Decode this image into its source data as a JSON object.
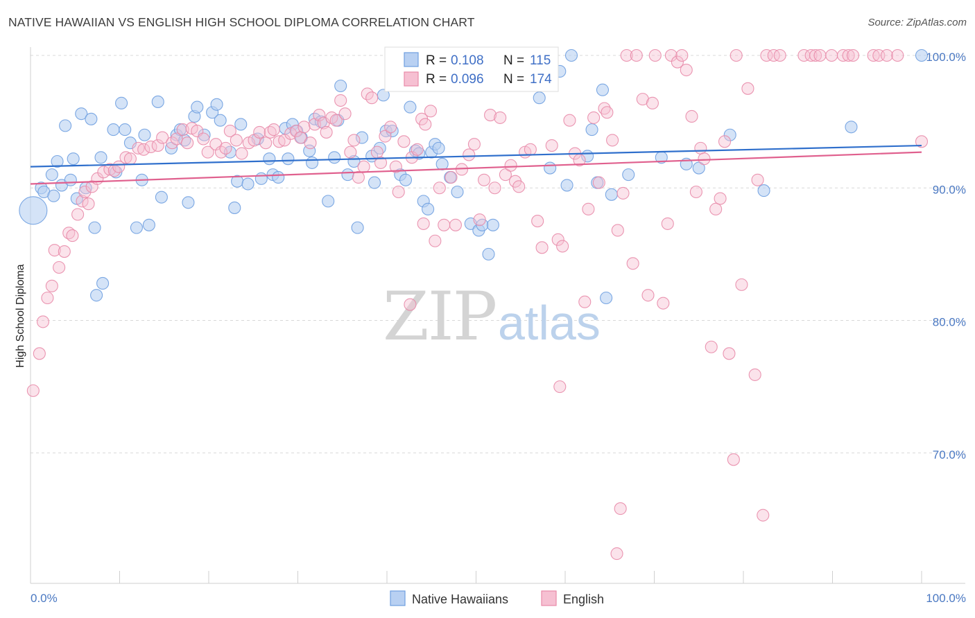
{
  "title": "NATIVE HAWAIIAN VS ENGLISH HIGH SCHOOL DIPLOMA CORRELATION CHART",
  "source": "Source: ZipAtlas.com",
  "watermark": {
    "zip": "ZIP",
    "atlas": "atlas"
  },
  "colors": {
    "blue": "#6e9fe0",
    "blue_fill": "#b8d0f2",
    "pink": "#e88aa8",
    "pink_fill": "#f6c0d2",
    "blue_line": "#2f6fcc",
    "pink_line": "#e0608e",
    "grid": "#d8d8d8",
    "tick_text": "#4a78c2"
  },
  "legend": {
    "blue": {
      "r_label": "R =",
      "r_value": "0.108",
      "n_label": "N =",
      "n_value": "115"
    },
    "pink": {
      "r_label": "R =",
      "r_value": "0.096",
      "n_label": "N =",
      "n_value": "174"
    }
  },
  "chart_data": {
    "type": "scatter",
    "title": "NATIVE HAWAIIAN VS ENGLISH HIGH SCHOOL DIPLOMA CORRELATION CHART",
    "xlabel": "",
    "ylabel": "High School Diploma",
    "xlim": [
      0,
      100
    ],
    "ylim": [
      60,
      100.8
    ],
    "x_tick_labels": [
      "0.0%",
      "100.0%"
    ],
    "y_ticks": [
      70,
      80,
      90,
      100
    ],
    "y_tick_labels": [
      "70.0%",
      "80.0%",
      "90.0%",
      "100.0%"
    ],
    "grid": true,
    "legend_position": "top-center",
    "series": [
      {
        "name": "Native Hawaiians",
        "color": "#6e9fe0",
        "trend": [
          [
            0,
            91.6
          ],
          [
            100,
            93.2
          ]
        ],
        "points": [
          [
            0.3,
            88.3
          ],
          [
            1.2,
            90
          ],
          [
            1.5,
            89.7
          ],
          [
            2.4,
            91
          ],
          [
            2.6,
            89.4
          ],
          [
            3.0,
            92
          ],
          [
            3.5,
            90.2
          ],
          [
            3.9,
            94.7
          ],
          [
            4.5,
            90.6
          ],
          [
            4.8,
            92.2
          ],
          [
            5.2,
            89.2
          ],
          [
            5.7,
            95.6
          ],
          [
            6.2,
            90
          ],
          [
            6.8,
            95.2
          ],
          [
            7.2,
            87
          ],
          [
            7.9,
            92.3
          ],
          [
            8.1,
            82.8
          ],
          [
            7.4,
            81.9
          ],
          [
            9.3,
            94.4
          ],
          [
            9.6,
            91.2
          ],
          [
            10.2,
            96.4
          ],
          [
            10.6,
            94.4
          ],
          [
            11.2,
            93.4
          ],
          [
            11.9,
            87
          ],
          [
            12.5,
            90.6
          ],
          [
            12.8,
            94
          ],
          [
            13.3,
            87.2
          ],
          [
            14.3,
            96.5
          ],
          [
            14.7,
            89.3
          ],
          [
            15.8,
            93
          ],
          [
            16.4,
            94
          ],
          [
            16.8,
            94.4
          ],
          [
            17.3,
            93.6
          ],
          [
            17.7,
            88.9
          ],
          [
            18.4,
            95.4
          ],
          [
            18.7,
            96.1
          ],
          [
            19.5,
            94
          ],
          [
            20.4,
            95.7
          ],
          [
            20.9,
            96.3
          ],
          [
            21.3,
            95.1
          ],
          [
            22.4,
            92.7
          ],
          [
            22.9,
            88.5
          ],
          [
            23.2,
            90.5
          ],
          [
            23.6,
            94.8
          ],
          [
            24.4,
            90.3
          ],
          [
            25.5,
            93.7
          ],
          [
            25.9,
            90.7
          ],
          [
            26.8,
            92.2
          ],
          [
            27.2,
            91
          ],
          [
            27.8,
            90.8
          ],
          [
            28.6,
            94.5
          ],
          [
            28.9,
            92.2
          ],
          [
            29.4,
            94.8
          ],
          [
            29.9,
            94.3
          ],
          [
            30.4,
            93.8
          ],
          [
            31.3,
            92.8
          ],
          [
            31.6,
            91.9
          ],
          [
            31.9,
            95.2
          ],
          [
            32.6,
            95
          ],
          [
            33.4,
            89
          ],
          [
            34.1,
            92.3
          ],
          [
            34.5,
            95.1
          ],
          [
            34.8,
            97.7
          ],
          [
            35.6,
            91
          ],
          [
            36.3,
            92
          ],
          [
            36.7,
            87
          ],
          [
            37.2,
            93.8
          ],
          [
            38.3,
            92.4
          ],
          [
            38.6,
            90.4
          ],
          [
            39.2,
            93
          ],
          [
            39.6,
            97
          ],
          [
            39.9,
            94.3
          ],
          [
            40.6,
            94.3
          ],
          [
            41.5,
            91
          ],
          [
            42.1,
            90.6
          ],
          [
            42.6,
            96.1
          ],
          [
            43.2,
            92.8
          ],
          [
            43.6,
            92.6
          ],
          [
            44.1,
            89
          ],
          [
            44.6,
            88.4
          ],
          [
            45.0,
            92.7
          ],
          [
            45.4,
            93.3
          ],
          [
            45.8,
            93
          ],
          [
            46.2,
            91.8
          ],
          [
            47.1,
            90.8
          ],
          [
            47.9,
            89.7
          ],
          [
            49.4,
            87.3
          ],
          [
            50.3,
            86.8
          ],
          [
            50.7,
            87.2
          ],
          [
            51.4,
            85
          ],
          [
            51.9,
            87.2
          ],
          [
            57.1,
            96.8
          ],
          [
            58.3,
            91.5
          ],
          [
            59.4,
            98.8
          ],
          [
            60.2,
            90.2
          ],
          [
            60.7,
            100
          ],
          [
            62.5,
            92.4
          ],
          [
            63.0,
            94.4
          ],
          [
            63.6,
            90.4
          ],
          [
            64.2,
            97.4
          ],
          [
            64.6,
            81.7
          ],
          [
            65.2,
            89.5
          ],
          [
            67.1,
            91
          ],
          [
            70.8,
            92.3
          ],
          [
            73.6,
            91.8
          ],
          [
            75.0,
            91.5
          ],
          [
            78.5,
            94
          ],
          [
            82.3,
            89.8
          ],
          [
            92.1,
            94.6
          ],
          [
            100,
            100
          ]
        ]
      },
      {
        "name": "English",
        "color": "#e88aa8",
        "trend": [
          [
            0,
            90.3
          ],
          [
            100,
            92.7
          ]
        ],
        "points": [
          [
            0.3,
            74.7
          ],
          [
            1.0,
            77.5
          ],
          [
            1.4,
            79.9
          ],
          [
            1.9,
            81.7
          ],
          [
            2.4,
            82.6
          ],
          [
            2.7,
            85.3
          ],
          [
            3.2,
            84
          ],
          [
            3.8,
            85.2
          ],
          [
            4.3,
            86.6
          ],
          [
            4.7,
            86.4
          ],
          [
            5.3,
            88
          ],
          [
            5.8,
            89
          ],
          [
            6.1,
            89.7
          ],
          [
            6.5,
            88.8
          ],
          [
            6.9,
            90.1
          ],
          [
            7.5,
            90.7
          ],
          [
            8.2,
            91.2
          ],
          [
            8.9,
            91.4
          ],
          [
            9.4,
            91.3
          ],
          [
            9.9,
            91.6
          ],
          [
            10.7,
            92.3
          ],
          [
            11.2,
            92.2
          ],
          [
            12.1,
            93
          ],
          [
            12.7,
            92.9
          ],
          [
            13.5,
            93.1
          ],
          [
            14.3,
            93.2
          ],
          [
            14.8,
            93.8
          ],
          [
            15.9,
            93.4
          ],
          [
            16.4,
            93.7
          ],
          [
            17.1,
            94.4
          ],
          [
            17.6,
            93.4
          ],
          [
            18.1,
            94.5
          ],
          [
            18.7,
            94.3
          ],
          [
            19.4,
            93.7
          ],
          [
            19.9,
            92.7
          ],
          [
            20.8,
            93.3
          ],
          [
            21.4,
            92.7
          ],
          [
            21.9,
            93
          ],
          [
            22.4,
            94.3
          ],
          [
            23.1,
            93.6
          ],
          [
            23.7,
            92.6
          ],
          [
            24.5,
            93.4
          ],
          [
            25.1,
            93.6
          ],
          [
            25.7,
            94.2
          ],
          [
            26.4,
            93.4
          ],
          [
            26.9,
            94.2
          ],
          [
            27.3,
            94.4
          ],
          [
            27.9,
            93.5
          ],
          [
            28.5,
            93.6
          ],
          [
            29.2,
            94.1
          ],
          [
            29.8,
            94.3
          ],
          [
            30.3,
            93.8
          ],
          [
            30.7,
            94.6
          ],
          [
            31.4,
            93.4
          ],
          [
            31.9,
            94.8
          ],
          [
            32.4,
            95.5
          ],
          [
            32.9,
            94.9
          ],
          [
            33.2,
            94.2
          ],
          [
            33.8,
            95.3
          ],
          [
            34.3,
            95.1
          ],
          [
            34.8,
            96.6
          ],
          [
            35.3,
            95.6
          ],
          [
            35.9,
            92.7
          ],
          [
            36.3,
            93.6
          ],
          [
            36.8,
            90.8
          ],
          [
            37.4,
            91.6
          ],
          [
            37.8,
            97.1
          ],
          [
            38.3,
            96.8
          ],
          [
            38.9,
            92.7
          ],
          [
            39.3,
            91.9
          ],
          [
            39.8,
            93.9
          ],
          [
            40.4,
            94.6
          ],
          [
            41.0,
            91.6
          ],
          [
            41.3,
            89.7
          ],
          [
            41.9,
            93.5
          ],
          [
            42.8,
            92.3
          ],
          [
            43.4,
            92.9
          ],
          [
            43.9,
            95.2
          ],
          [
            44.3,
            94.8
          ],
          [
            44.9,
            95.8
          ],
          [
            45.4,
            86
          ],
          [
            45.9,
            90
          ],
          [
            46.4,
            87.2
          ],
          [
            47.2,
            90.8
          ],
          [
            47.7,
            87.2
          ],
          [
            48.4,
            91.4
          ],
          [
            49.2,
            92.5
          ],
          [
            49.8,
            93.3
          ],
          [
            50.4,
            87.6
          ],
          [
            50.9,
            90.6
          ],
          [
            51.6,
            95.5
          ],
          [
            52.1,
            90
          ],
          [
            52.7,
            95.3
          ],
          [
            53.3,
            91
          ],
          [
            53.9,
            91.7
          ],
          [
            54.4,
            90.5
          ],
          [
            54.8,
            90.1
          ],
          [
            55.5,
            92.7
          ],
          [
            56.1,
            92.9
          ],
          [
            56.9,
            87.5
          ],
          [
            57.4,
            85.5
          ],
          [
            58.5,
            93.2
          ],
          [
            59.2,
            86.1
          ],
          [
            59.7,
            85.6
          ],
          [
            60.5,
            95.1
          ],
          [
            61.1,
            92.6
          ],
          [
            61.6,
            92.1
          ],
          [
            62.2,
            81.4
          ],
          [
            62.6,
            88.4
          ],
          [
            63.2,
            95.3
          ],
          [
            63.8,
            90.4
          ],
          [
            64.4,
            96
          ],
          [
            64.7,
            95.7
          ],
          [
            65.3,
            93.6
          ],
          [
            65.9,
            86.8
          ],
          [
            66.5,
            89.6
          ],
          [
            66.9,
            100
          ],
          [
            67.6,
            84.3
          ],
          [
            68.7,
            96.7
          ],
          [
            69.3,
            81.9
          ],
          [
            69.8,
            96.4
          ],
          [
            71.0,
            81.3
          ],
          [
            71.5,
            87.3
          ],
          [
            71.9,
            100
          ],
          [
            72.6,
            99.5
          ],
          [
            73.1,
            100
          ],
          [
            73.6,
            98.9
          ],
          [
            74.2,
            95.4
          ],
          [
            74.7,
            89.7
          ],
          [
            75.2,
            93
          ],
          [
            75.6,
            92.2
          ],
          [
            76.4,
            78
          ],
          [
            76.9,
            88.4
          ],
          [
            77.4,
            89.2
          ],
          [
            77.9,
            93.5
          ],
          [
            78.4,
            77.5
          ],
          [
            78.9,
            69.5
          ],
          [
            79.2,
            100
          ],
          [
            79.8,
            82.7
          ],
          [
            80.5,
            97.5
          ],
          [
            81.3,
            75.9
          ],
          [
            81.6,
            90.6
          ],
          [
            82.2,
            65.3
          ],
          [
            82.6,
            100
          ],
          [
            83.4,
            100
          ],
          [
            84.1,
            100
          ],
          [
            86.8,
            100
          ],
          [
            87.6,
            100
          ],
          [
            88.1,
            100
          ],
          [
            88.6,
            100
          ],
          [
            89.9,
            100
          ],
          [
            91.2,
            100
          ],
          [
            91.8,
            100
          ],
          [
            92.3,
            100
          ],
          [
            94.6,
            100
          ],
          [
            95.2,
            100
          ],
          [
            96.1,
            100
          ],
          [
            97.3,
            100
          ],
          [
            100,
            93.5
          ],
          [
            44.1,
            87.3
          ],
          [
            59.4,
            75
          ],
          [
            58.2,
            100
          ],
          [
            70.1,
            100
          ],
          [
            68.0,
            100
          ],
          [
            65.8,
            62.4
          ],
          [
            66.2,
            65.8
          ],
          [
            42.6,
            81.2
          ]
        ]
      }
    ]
  },
  "bottom_legend": [
    {
      "label": "Native Hawaiians"
    },
    {
      "label": "English"
    }
  ]
}
